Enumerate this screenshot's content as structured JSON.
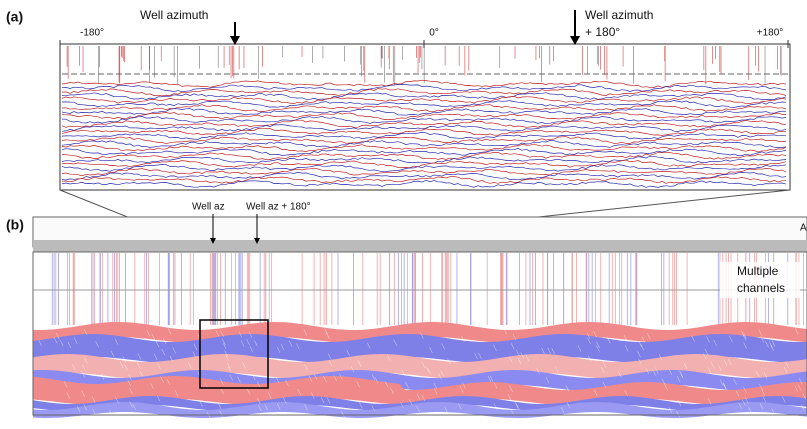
{
  "panel_a": {
    "label": "(a)",
    "axis_labels": [
      "-180°",
      "0°",
      "+180°"
    ],
    "arrow_left": "Well azimuth",
    "arrow_right": [
      "Well azimuth",
      "+ 180°"
    ]
  },
  "panel_b": {
    "label": "(b)",
    "arrow_left": "Well az",
    "arrow_right": "Well az + 180°",
    "annotation": [
      "Multiple",
      "channels"
    ],
    "edge_label": "A"
  }
}
